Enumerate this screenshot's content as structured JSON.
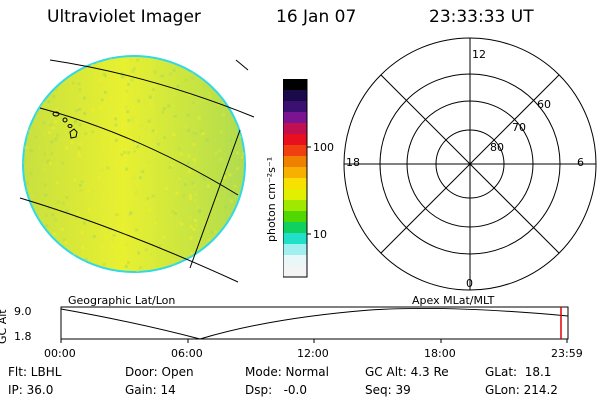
{
  "header": {
    "title": "Ultraviolet Imager",
    "date": "16 Jan 07",
    "time": "23:33:33 UT"
  },
  "colorbar": {
    "unit_label": "photon cm⁻²s⁻¹",
    "ticks": [
      "100",
      "10"
    ],
    "colors": [
      "#000000",
      "#1a0a4a",
      "#3a1070",
      "#7a1490",
      "#c01050",
      "#e81020",
      "#f04010",
      "#f08000",
      "#f8b000",
      "#f8e000",
      "#e0f000",
      "#a0e800",
      "#50d800",
      "#10d060",
      "#20e0c8",
      "#a0f0f0",
      "#e8f8f8",
      "#f4f4f4"
    ]
  },
  "earth_panel": {
    "label": "Geographic Lat/Lon",
    "fill_colors": [
      "#c8e040",
      "#e8f030",
      "#b0dc50"
    ],
    "limb_color": "#30d8e8"
  },
  "polar_plot": {
    "label": "Apex MLat/MLT",
    "mlt_labels": [
      "12",
      "18",
      "6",
      "0"
    ],
    "lat_labels": [
      "60",
      "70",
      "80"
    ]
  },
  "altitude_strip": {
    "axis_label": "GC Alt",
    "ymax_label": "9.0",
    "ymin_label": "1.8",
    "x_ticks": [
      "00:00",
      "06:00",
      "12:00",
      "18:00",
      "23:59"
    ],
    "marker_color": "#e00000"
  },
  "status": {
    "flt": "Flt: LBHL",
    "ip": "IP: 36.0",
    "door": "Door: Open",
    "gain": "Gain: 14",
    "mode": "Mode: Normal",
    "dsp": "Dsp:   -0.0",
    "gc_alt": "GC Alt: 4.3 Re",
    "seq": "Seq: 39",
    "glat": "GLat:  18.1",
    "glon": "GLon: 214.2"
  }
}
